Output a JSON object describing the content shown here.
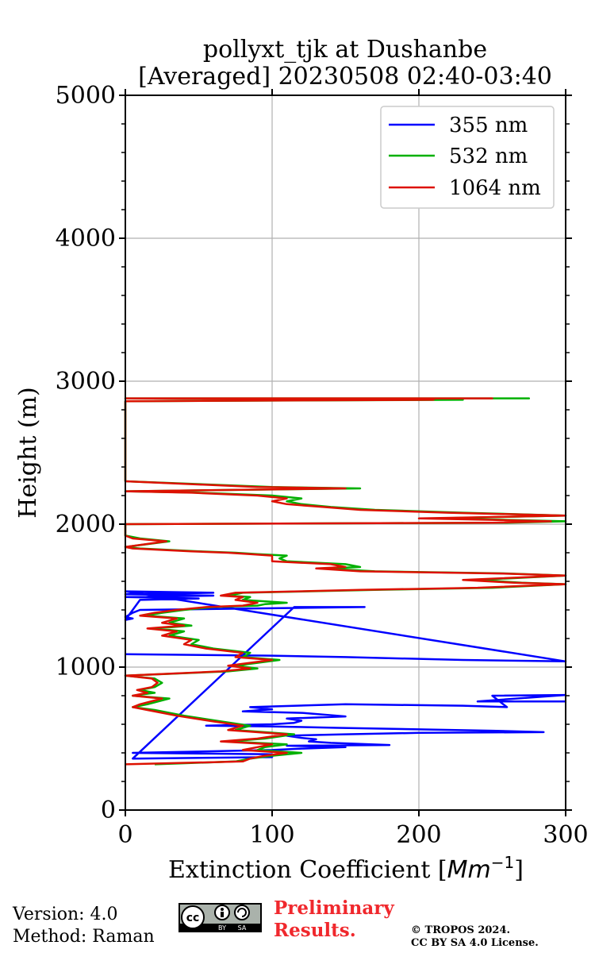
{
  "chart_data": {
    "type": "line",
    "title_line1": "pollyxt_tjk at Dushanbe",
    "title_line2": "[Averaged] 20230508 02:40-03:40",
    "xlabel": "Extinction Coefficient [",
    "xlabel_unit": "Mm",
    "xlabel_exp": "−1",
    "xlabel_close": "]",
    "ylabel": "Height (m)",
    "xlim": [
      0,
      300
    ],
    "ylim": [
      0,
      5000
    ],
    "xticks": [
      0,
      100,
      200,
      300
    ],
    "yticks": [
      0,
      1000,
      2000,
      3000,
      4000,
      5000
    ],
    "xtick_labels": [
      "0",
      "100",
      "200",
      "300"
    ],
    "ytick_labels": [
      "0",
      "1000",
      "2000",
      "3000",
      "4000",
      "5000"
    ],
    "grid": true,
    "legend_position": "top-right",
    "series": [
      {
        "name": "355 nm",
        "color": "#0000ff",
        "points": [
          [
            300,
            760
          ],
          [
            240,
            760
          ],
          [
            300,
            805
          ],
          [
            250,
            800
          ],
          [
            260,
            720
          ],
          [
            230,
            730
          ],
          [
            150,
            740
          ],
          [
            85,
            720
          ],
          [
            100,
            705
          ],
          [
            80,
            690
          ],
          [
            120,
            680
          ],
          [
            150,
            655
          ],
          [
            110,
            640
          ],
          [
            120,
            625
          ],
          [
            115,
            610
          ],
          [
            100,
            600
          ],
          [
            75,
            595
          ],
          [
            55,
            590
          ],
          [
            100,
            585
          ],
          [
            145,
            575
          ],
          [
            250,
            555
          ],
          [
            285,
            545
          ],
          [
            200,
            540
          ],
          [
            150,
            530
          ],
          [
            110,
            520
          ],
          [
            120,
            505
          ],
          [
            130,
            495
          ],
          [
            125,
            480
          ],
          [
            140,
            470
          ],
          [
            180,
            455
          ],
          [
            110,
            450
          ],
          [
            150,
            440
          ],
          [
            120,
            430
          ],
          [
            100,
            420
          ],
          [
            5,
            400
          ],
          [
            55,
            395
          ],
          [
            100,
            390
          ],
          [
            100,
            370
          ],
          [
            5,
            360
          ],
          [
            115,
            1420
          ],
          [
            163,
            1420
          ],
          [
            10,
            1400
          ],
          [
            5,
            1380
          ],
          [
            0,
            1350
          ],
          [
            5,
            1340
          ],
          [
            0,
            1330
          ],
          [
            10,
            1470
          ],
          [
            50,
            1480
          ],
          [
            0,
            1490
          ],
          [
            60,
            1500
          ],
          [
            0,
            1510
          ],
          [
            60,
            1520
          ],
          [
            0,
            1530
          ],
          [
            300,
            1040
          ],
          [
            230,
            1050
          ],
          [
            150,
            1070
          ],
          [
            100,
            1080
          ],
          [
            0,
            1090
          ]
        ]
      },
      {
        "name": "532 nm",
        "color": "#00b000",
        "points": [
          [
            20,
            320
          ],
          [
            75,
            340
          ],
          [
            85,
            360
          ],
          [
            100,
            380
          ],
          [
            120,
            400
          ],
          [
            90,
            420
          ],
          [
            95,
            440
          ],
          [
            110,
            460
          ],
          [
            70,
            480
          ],
          [
            95,
            500
          ],
          [
            115,
            530
          ],
          [
            75,
            560
          ],
          [
            85,
            590
          ],
          [
            65,
            620
          ],
          [
            40,
            660
          ],
          [
            20,
            700
          ],
          [
            5,
            720
          ],
          [
            15,
            740
          ],
          [
            30,
            780
          ],
          [
            5,
            800
          ],
          [
            20,
            820
          ],
          [
            10,
            840
          ],
          [
            20,
            860
          ],
          [
            25,
            890
          ],
          [
            20,
            920
          ],
          [
            0,
            940
          ],
          [
            70,
            970
          ],
          [
            90,
            990
          ],
          [
            75,
            1010
          ],
          [
            90,
            1030
          ],
          [
            105,
            1050
          ],
          [
            80,
            1070
          ],
          [
            85,
            1100
          ],
          [
            60,
            1130
          ],
          [
            45,
            1160
          ],
          [
            50,
            1190
          ],
          [
            30,
            1220
          ],
          [
            40,
            1250
          ],
          [
            20,
            1270
          ],
          [
            45,
            1290
          ],
          [
            30,
            1310
          ],
          [
            40,
            1340
          ],
          [
            15,
            1360
          ],
          [
            25,
            1380
          ],
          [
            40,
            1400
          ],
          [
            60,
            1420
          ],
          [
            90,
            1430
          ],
          [
            95,
            1440
          ],
          [
            110,
            1450
          ],
          [
            80,
            1470
          ],
          [
            85,
            1490
          ],
          [
            70,
            1500
          ],
          [
            80,
            1520
          ],
          [
            170,
            1540
          ],
          [
            250,
            1555
          ],
          [
            300,
            1580
          ],
          [
            270,
            1590
          ],
          [
            240,
            1610
          ],
          [
            300,
            1640
          ],
          [
            260,
            1655
          ],
          [
            170,
            1670
          ],
          [
            135,
            1690
          ],
          [
            160,
            1700
          ],
          [
            150,
            1720
          ],
          [
            110,
            1740
          ],
          [
            105,
            1760
          ],
          [
            110,
            1780
          ],
          [
            90,
            1790
          ],
          [
            75,
            1800
          ],
          [
            50,
            1810
          ],
          [
            10,
            1830
          ],
          [
            0,
            1840
          ],
          [
            30,
            1880
          ],
          [
            10,
            1900
          ],
          [
            0,
            1920
          ],
          [
            0,
            2000
          ],
          [
            260,
            2010
          ],
          [
            300,
            2020
          ],
          [
            260,
            2030
          ],
          [
            210,
            2040
          ],
          [
            300,
            2060
          ],
          [
            230,
            2080
          ],
          [
            170,
            2100
          ],
          [
            140,
            2120
          ],
          [
            120,
            2140
          ],
          [
            110,
            2160
          ],
          [
            120,
            2180
          ],
          [
            100,
            2200
          ],
          [
            50,
            2220
          ],
          [
            0,
            2230
          ],
          [
            160,
            2250
          ],
          [
            100,
            2260
          ],
          [
            0,
            2300
          ],
          [
            0,
            2860
          ],
          [
            230,
            2870
          ],
          [
            0,
            2880
          ],
          [
            275,
            2880
          ],
          [
            0,
            2880
          ]
        ]
      },
      {
        "name": "1064 nm",
        "color": "#dd1100",
        "points": [
          [
            0,
            320
          ],
          [
            80,
            340
          ],
          [
            85,
            360
          ],
          [
            95,
            380
          ],
          [
            110,
            400
          ],
          [
            80,
            420
          ],
          [
            90,
            440
          ],
          [
            100,
            460
          ],
          [
            65,
            480
          ],
          [
            90,
            500
          ],
          [
            110,
            530
          ],
          [
            70,
            560
          ],
          [
            80,
            590
          ],
          [
            60,
            620
          ],
          [
            35,
            660
          ],
          [
            15,
            700
          ],
          [
            5,
            720
          ],
          [
            10,
            740
          ],
          [
            25,
            780
          ],
          [
            5,
            800
          ],
          [
            15,
            820
          ],
          [
            8,
            840
          ],
          [
            18,
            860
          ],
          [
            22,
            890
          ],
          [
            18,
            920
          ],
          [
            0,
            940
          ],
          [
            65,
            970
          ],
          [
            85,
            990
          ],
          [
            70,
            1010
          ],
          [
            85,
            1030
          ],
          [
            100,
            1050
          ],
          [
            75,
            1070
          ],
          [
            80,
            1100
          ],
          [
            55,
            1130
          ],
          [
            40,
            1160
          ],
          [
            45,
            1190
          ],
          [
            25,
            1220
          ],
          [
            35,
            1250
          ],
          [
            15,
            1270
          ],
          [
            40,
            1290
          ],
          [
            25,
            1310
          ],
          [
            35,
            1340
          ],
          [
            10,
            1360
          ],
          [
            20,
            1380
          ],
          [
            35,
            1400
          ],
          [
            55,
            1420
          ],
          [
            80,
            1430
          ],
          [
            85,
            1440
          ],
          [
            90,
            1450
          ],
          [
            75,
            1470
          ],
          [
            80,
            1490
          ],
          [
            65,
            1500
          ],
          [
            75,
            1520
          ],
          [
            160,
            1540
          ],
          [
            240,
            1555
          ],
          [
            300,
            1580
          ],
          [
            265,
            1590
          ],
          [
            230,
            1610
          ],
          [
            300,
            1640
          ],
          [
            255,
            1655
          ],
          [
            160,
            1670
          ],
          [
            130,
            1690
          ],
          [
            150,
            1700
          ],
          [
            140,
            1720
          ],
          [
            100,
            1740
          ],
          [
            100,
            1760
          ],
          [
            100,
            1780
          ],
          [
            85,
            1790
          ],
          [
            70,
            1800
          ],
          [
            45,
            1810
          ],
          [
            5,
            1830
          ],
          [
            0,
            1840
          ],
          [
            28,
            1880
          ],
          [
            5,
            1900
          ],
          [
            0,
            1920
          ],
          [
            0,
            2000
          ],
          [
            250,
            2010
          ],
          [
            290,
            2020
          ],
          [
            250,
            2030
          ],
          [
            200,
            2040
          ],
          [
            300,
            2060
          ],
          [
            220,
            2080
          ],
          [
            160,
            2100
          ],
          [
            135,
            2120
          ],
          [
            110,
            2140
          ],
          [
            100,
            2160
          ],
          [
            110,
            2180
          ],
          [
            90,
            2200
          ],
          [
            45,
            2220
          ],
          [
            0,
            2230
          ],
          [
            150,
            2250
          ],
          [
            90,
            2260
          ],
          [
            0,
            2300
          ],
          [
            0,
            2860
          ],
          [
            210,
            2870
          ],
          [
            0,
            2880
          ],
          [
            250,
            2880
          ],
          [
            0,
            2880
          ]
        ]
      }
    ]
  },
  "footer": {
    "version": "Version: 4.0",
    "method": "Method: Raman",
    "preliminary_line1": "Preliminary",
    "preliminary_line2": "Results.",
    "copyright_line1": "© TROPOS 2024.",
    "copyright_line2": "CC BY SA 4.0 License.",
    "badge_cc": "cc",
    "badge_by": "BY",
    "badge_sa": "SA"
  }
}
